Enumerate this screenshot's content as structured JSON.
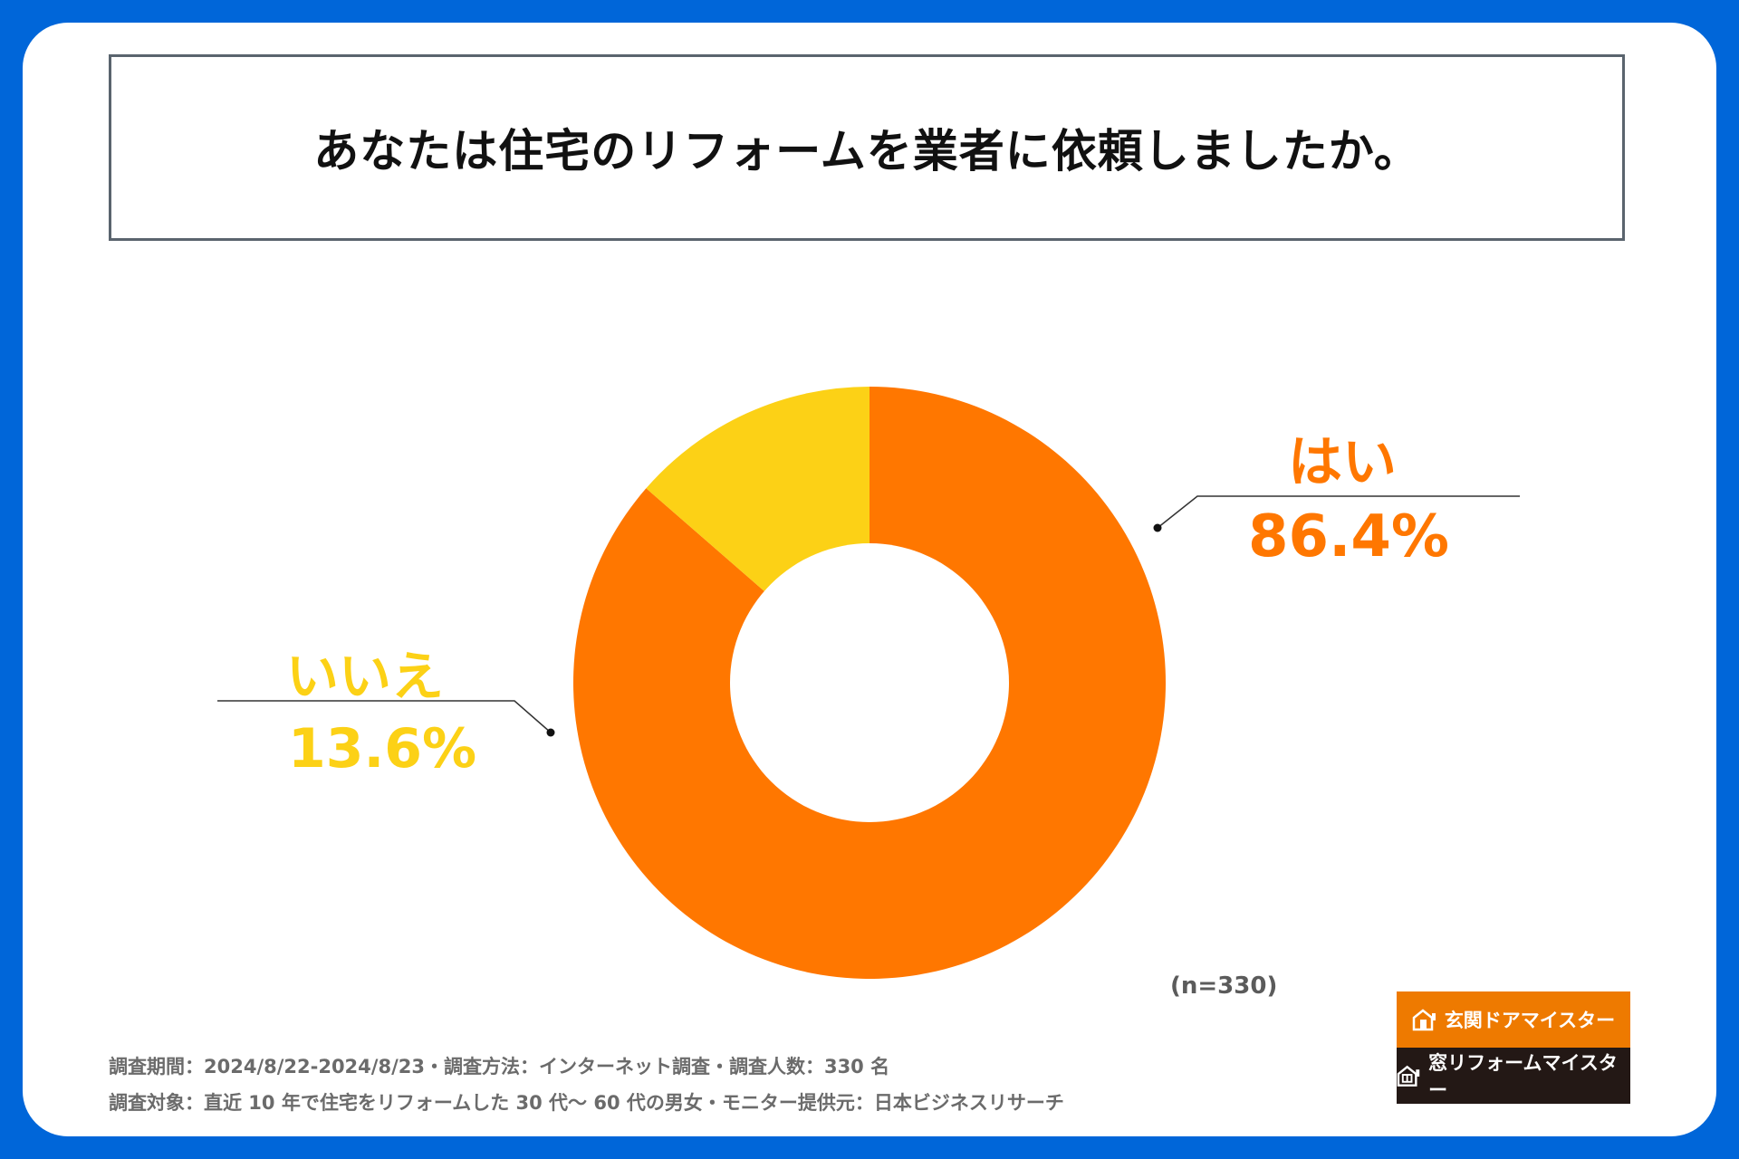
{
  "title": "あなたは住宅のリフォームを業者に依頼しましたか。",
  "chart_data": {
    "type": "pie",
    "variant": "donut",
    "title": "あなたは住宅のリフォームを業者に依頼しましたか。",
    "categories": [
      "はい",
      "いいえ"
    ],
    "values": [
      86.4,
      13.6
    ],
    "value_labels": [
      "86.4%",
      "13.6%"
    ],
    "colors": [
      "#ff7700",
      "#fcd116"
    ],
    "sample_size": "(n=330)"
  },
  "notes": {
    "line1": "調査期間：2024/8/22-2024/8/23・調査方法：インターネット調査・調査人数：330 名",
    "line2": "調査対象：直近 10 年で住宅をリフォームした 30 代～ 60 代の男女・モニター提供元：日本ビジネスリサーチ"
  },
  "logos": {
    "brand1": "玄関ドアマイスター",
    "brand2": "窓リフォームマイスター"
  }
}
